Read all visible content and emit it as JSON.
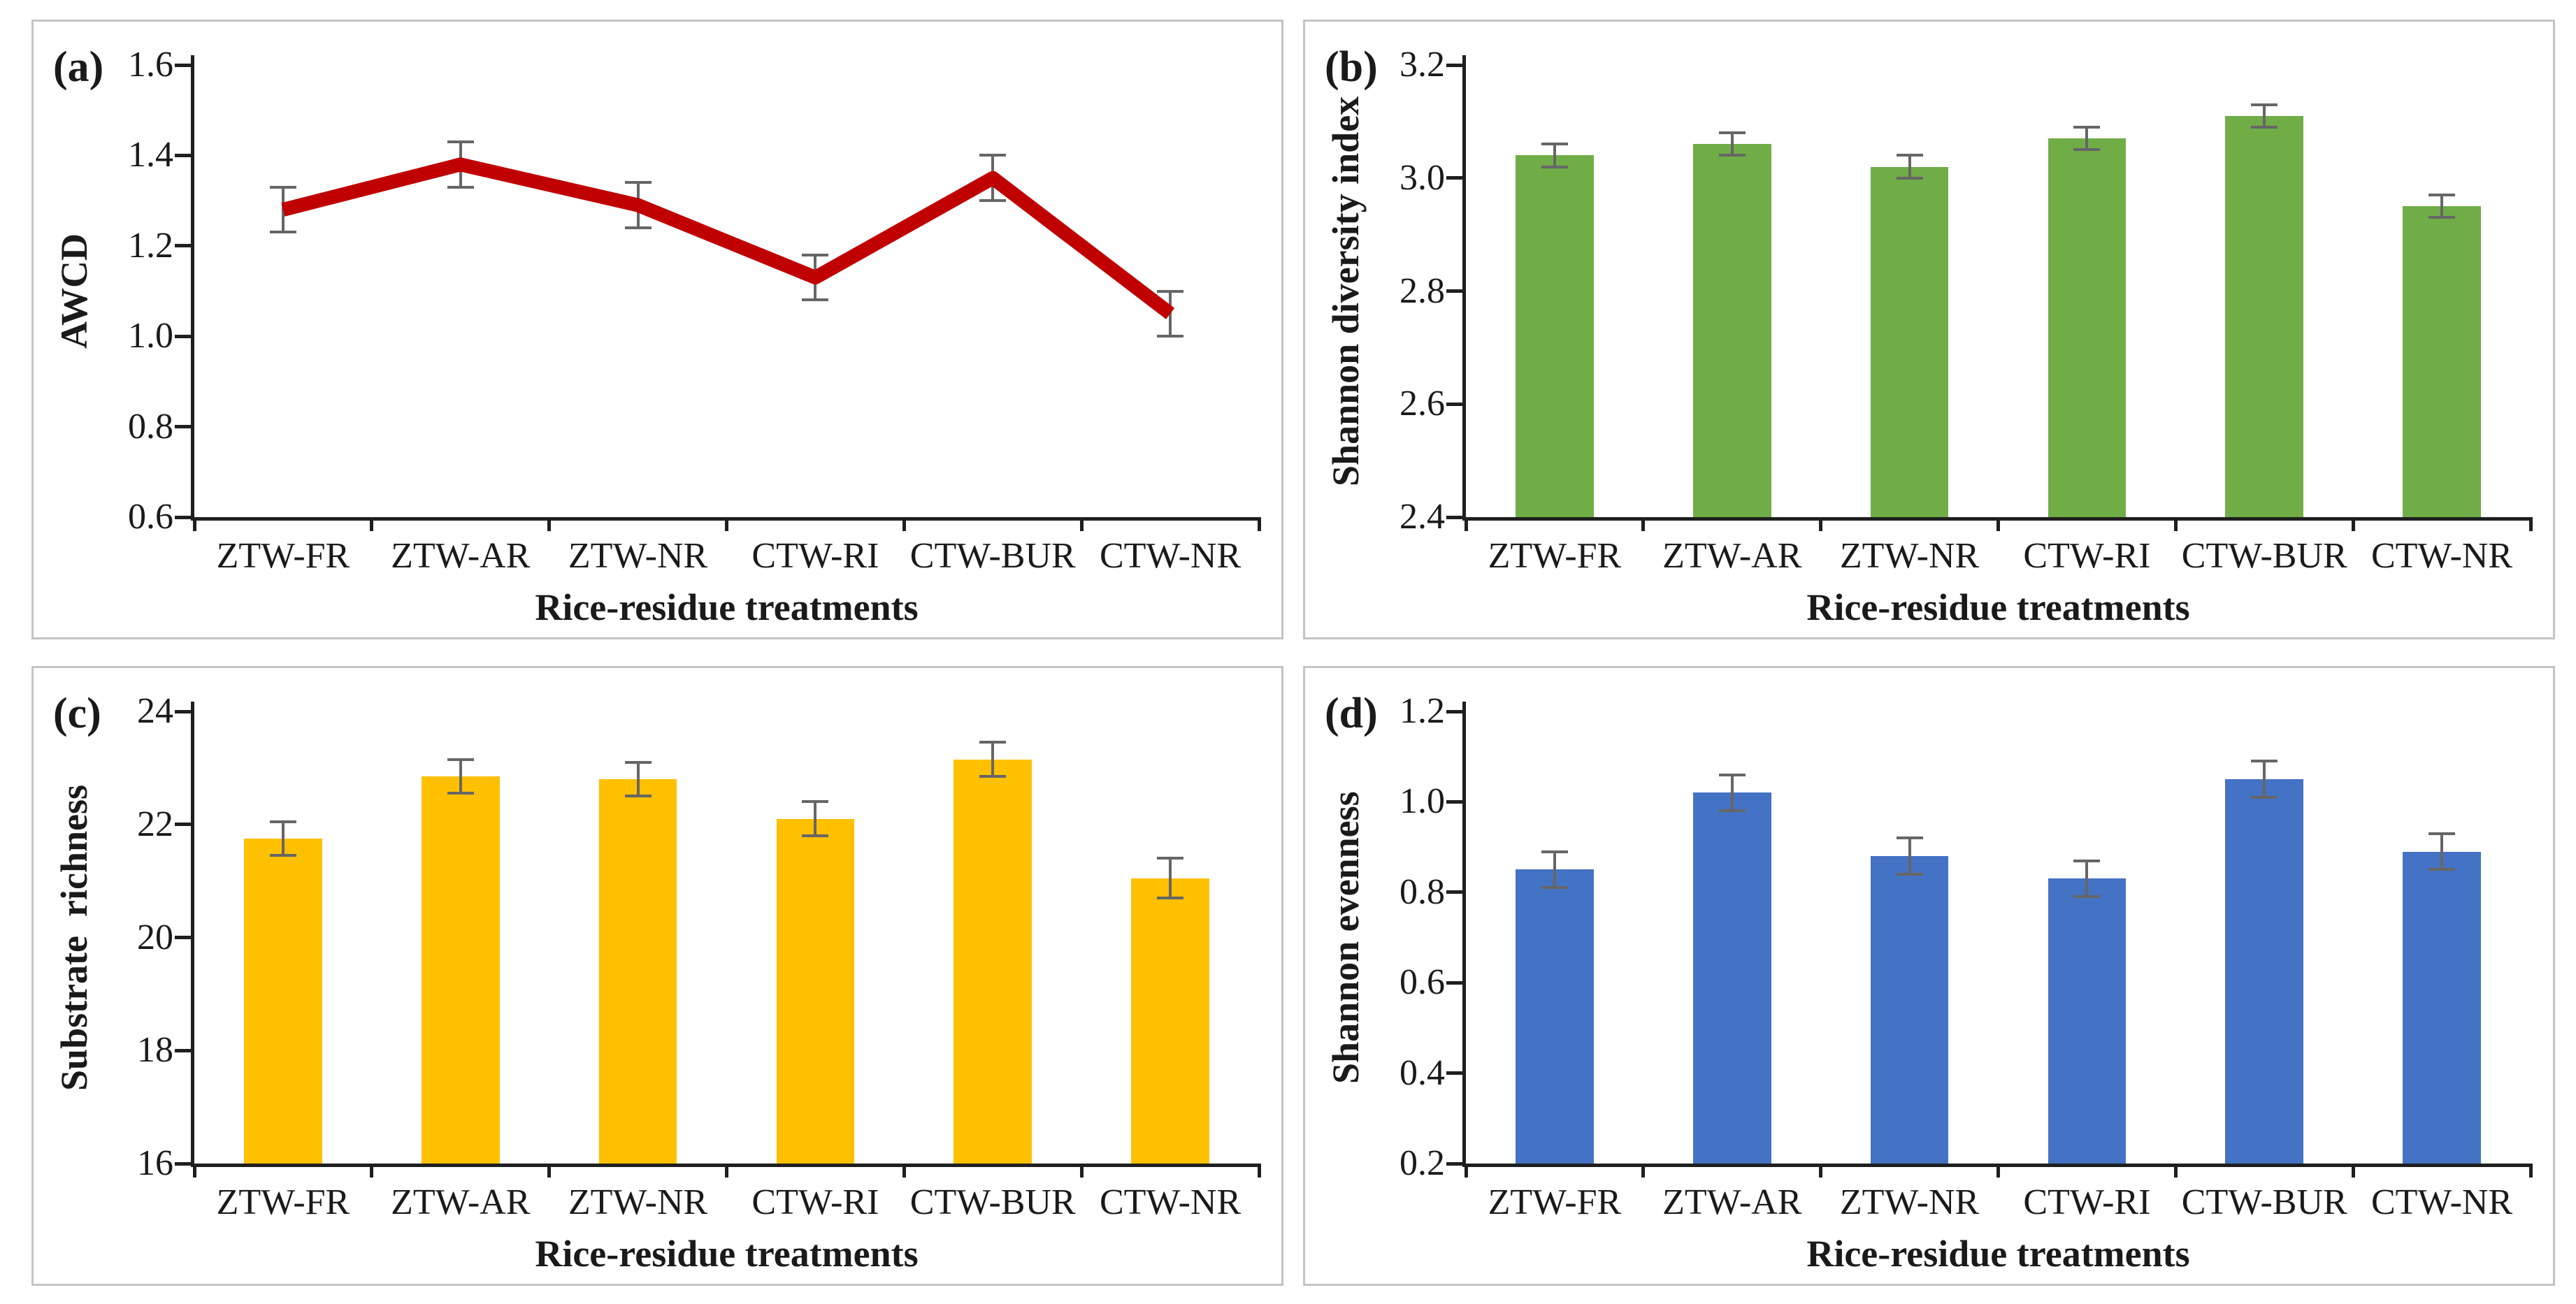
{
  "figure": {
    "x_axis_label": "Rice-residue treatments",
    "categories": [
      "ZTW-FR",
      "ZTW-AR",
      "ZTW-NR",
      "CTW-RI",
      "CTW-BUR",
      "CTW-NR"
    ]
  },
  "colors": {
    "line_red": "#C00000",
    "bar_green": "#70AD47",
    "bar_yellow": "#FFC000",
    "bar_blue": "#4472C4",
    "error_bar": "#666666",
    "axis": "#1F1F1F",
    "panel_border": "#C4C4C4",
    "text": "#1A1A1A"
  },
  "chart_data": [
    {
      "panel_label": "(a)",
      "type": "line",
      "title": "",
      "ylabel": "AWCD",
      "xlabel": "Rice-residue treatments",
      "categories": [
        "ZTW-FR",
        "ZTW-AR",
        "ZTW-NR",
        "CTW-RI",
        "CTW-BUR",
        "CTW-NR"
      ],
      "values": [
        1.28,
        1.38,
        1.29,
        1.13,
        1.35,
        1.05
      ],
      "errors": [
        0.05,
        0.05,
        0.05,
        0.05,
        0.05,
        0.05
      ],
      "ylim": [
        0.6,
        1.6
      ],
      "yticks": [
        1.6,
        1.4,
        1.2,
        1.0,
        0.8,
        0.6
      ],
      "ytick_labels": [
        "1.6",
        "1.4",
        "1.2",
        "1.0",
        "0.8",
        "0.6"
      ],
      "grid": false,
      "legend": false,
      "color": "#C00000"
    },
    {
      "panel_label": "(b)",
      "type": "bar",
      "title": "",
      "ylabel": "Shannon diversity index",
      "xlabel": "Rice-residue treatments",
      "categories": [
        "ZTW-FR",
        "ZTW-AR",
        "ZTW-NR",
        "CTW-RI",
        "CTW-BUR",
        "CTW-NR"
      ],
      "values": [
        3.04,
        3.06,
        3.02,
        3.07,
        3.11,
        2.95
      ],
      "errors": [
        0.02,
        0.02,
        0.02,
        0.02,
        0.02,
        0.02
      ],
      "ylim": [
        2.4,
        3.2
      ],
      "yticks": [
        3.2,
        3.0,
        2.8,
        2.6,
        2.4
      ],
      "ytick_labels": [
        "3.2",
        "3.0",
        "2.8",
        "2.6",
        "2.4"
      ],
      "grid": false,
      "legend": false,
      "color": "#70AD47"
    },
    {
      "panel_label": "(c)",
      "type": "bar",
      "title": "",
      "ylabel": "Substrate  richness",
      "xlabel": "Rice-residue treatments",
      "categories": [
        "ZTW-FR",
        "ZTW-AR",
        "ZTW-NR",
        "CTW-RI",
        "CTW-BUR",
        "CTW-NR"
      ],
      "values": [
        21.75,
        22.85,
        22.8,
        22.1,
        23.15,
        21.05
      ],
      "errors": [
        0.3,
        0.3,
        0.3,
        0.3,
        0.3,
        0.35
      ],
      "ylim": [
        16,
        24
      ],
      "yticks": [
        24,
        22,
        20,
        18,
        16
      ],
      "ytick_labels": [
        "24",
        "22",
        "20",
        "18",
        "16"
      ],
      "grid": false,
      "legend": false,
      "color": "#FFC000"
    },
    {
      "panel_label": "(d)",
      "type": "bar",
      "title": "",
      "ylabel": "Shannon evenness",
      "xlabel": "Rice-residue treatments",
      "categories": [
        "ZTW-FR",
        "ZTW-AR",
        "ZTW-NR",
        "CTW-RI",
        "CTW-BUR",
        "CTW-NR"
      ],
      "values": [
        0.85,
        1.02,
        0.88,
        0.83,
        1.05,
        0.89
      ],
      "errors": [
        0.04,
        0.04,
        0.04,
        0.04,
        0.04,
        0.04
      ],
      "ylim": [
        0.2,
        1.2
      ],
      "yticks": [
        1.2,
        1.0,
        0.8,
        0.6,
        0.4,
        0.2
      ],
      "ytick_labels": [
        "1.2",
        "1.0",
        "0.8",
        "0.6",
        "0.4",
        "0.2"
      ],
      "grid": false,
      "legend": false,
      "color": "#4472C4"
    }
  ]
}
